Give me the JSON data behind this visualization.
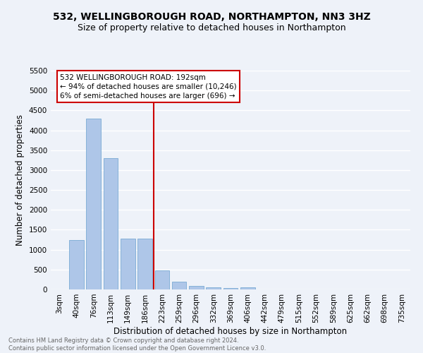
{
  "title1": "532, WELLINGBOROUGH ROAD, NORTHAMPTON, NN3 3HZ",
  "title2": "Size of property relative to detached houses in Northampton",
  "xlabel": "Distribution of detached houses by size in Northampton",
  "ylabel": "Number of detached properties",
  "bar_labels": [
    "3sqm",
    "40sqm",
    "76sqm",
    "113sqm",
    "149sqm",
    "186sqm",
    "223sqm",
    "259sqm",
    "296sqm",
    "332sqm",
    "369sqm",
    "406sqm",
    "442sqm",
    "479sqm",
    "515sqm",
    "552sqm",
    "589sqm",
    "625sqm",
    "662sqm",
    "698sqm",
    "735sqm"
  ],
  "bar_values": [
    0,
    1250,
    4300,
    3300,
    1270,
    1270,
    475,
    190,
    90,
    60,
    40,
    55,
    0,
    0,
    0,
    0,
    0,
    0,
    0,
    0,
    0
  ],
  "bar_color": "#aec6e8",
  "bar_edge_color": "#7aaad4",
  "vline_color": "#cc0000",
  "annotation_text": "532 WELLINGBOROUGH ROAD: 192sqm\n← 94% of detached houses are smaller (10,246)\n6% of semi-detached houses are larger (696) →",
  "annotation_box_color": "#ffffff",
  "annotation_box_edge": "#cc0000",
  "ylim": [
    0,
    5500
  ],
  "yticks": [
    0,
    500,
    1000,
    1500,
    2000,
    2500,
    3000,
    3500,
    4000,
    4500,
    5000,
    5500
  ],
  "footnote": "Contains HM Land Registry data © Crown copyright and database right 2024.\nContains public sector information licensed under the Open Government Licence v3.0.",
  "bg_color": "#eef2f9",
  "grid_color": "#ffffff",
  "title_fontsize": 10,
  "subtitle_fontsize": 9,
  "tick_fontsize": 7.5,
  "label_fontsize": 8.5,
  "footnote_fontsize": 6,
  "vline_bin_index": 5
}
